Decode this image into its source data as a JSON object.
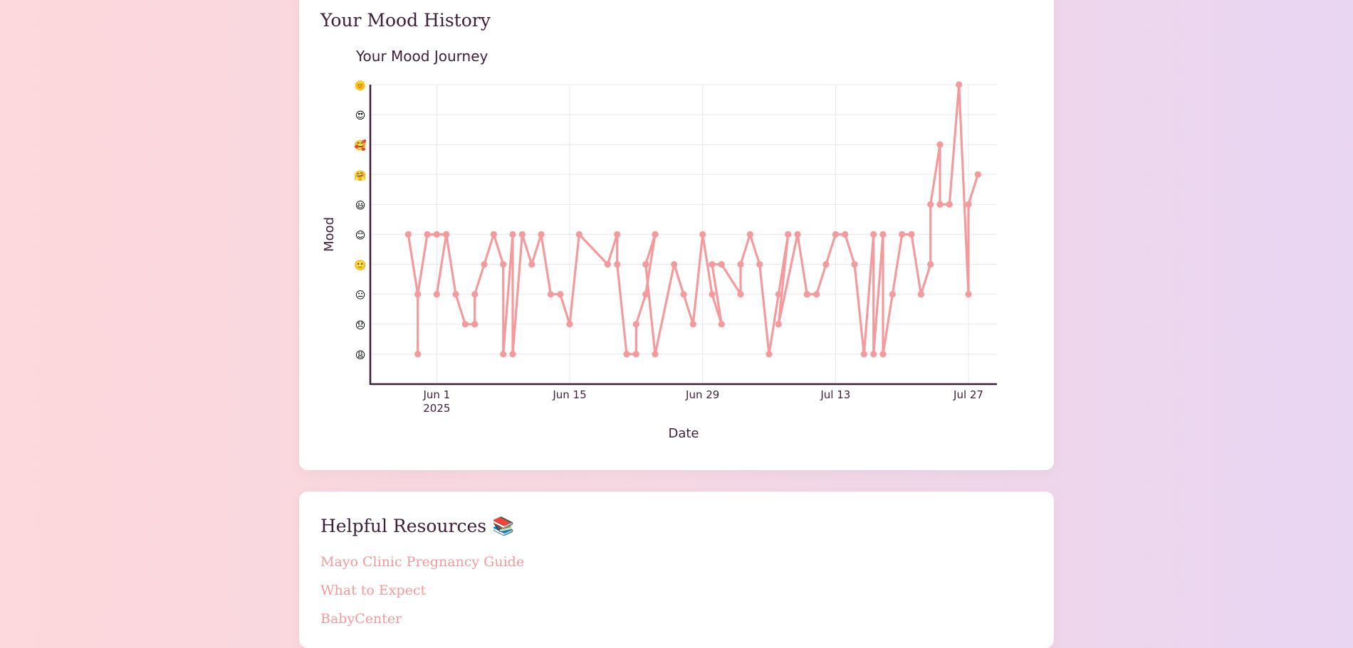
{
  "mood_card": {
    "title": "Your Mood History"
  },
  "resources": {
    "title": "Helpful Resources 📚",
    "links": [
      {
        "label": "Mayo Clinic Pregnancy Guide"
      },
      {
        "label": "What to Expect"
      },
      {
        "label": "BabyCenter"
      }
    ]
  },
  "chart_data": {
    "type": "line",
    "title": "Your Mood Journey",
    "xlabel": "Date",
    "ylabel": "Mood",
    "colors": {
      "line": "#f59a9c",
      "axis": "#3d1f3a",
      "grid": "#e8e8ec",
      "text": "#3d1f3a"
    },
    "mood_levels": [
      "😩",
      "😞",
      "😐",
      "🙂",
      "😊",
      "😃",
      "🤗",
      "🥰",
      "😍",
      "🌞"
    ],
    "ylim": [
      0,
      10
    ],
    "xlim": [
      "2025-05-25",
      "2025-07-30"
    ],
    "x_ticks": [
      "2025-06-01",
      "2025-06-15",
      "2025-06-29",
      "2025-07-13",
      "2025-07-27"
    ],
    "x_tick_labels": [
      [
        "Jun 1",
        "2025"
      ],
      [
        "Jun 15"
      ],
      [
        "Jun 29"
      ],
      [
        "Jul 13"
      ],
      [
        "Jul 27"
      ]
    ],
    "grid": true,
    "series": [
      {
        "x": [
          "2025-05-29",
          "2025-05-30",
          "2025-05-30",
          "2025-05-30",
          "2025-05-31",
          "2025-06-01",
          "2025-06-02",
          "2025-06-01",
          "2025-06-02",
          "2025-06-03",
          "2025-06-04",
          "2025-06-05",
          "2025-06-05",
          "2025-06-05",
          "2025-06-06",
          "2025-06-07",
          "2025-06-08",
          "2025-06-08",
          "2025-06-09",
          "2025-06-09",
          "2025-06-10",
          "2025-06-11",
          "2025-06-12",
          "2025-06-13",
          "2025-06-14",
          "2025-06-15",
          "2025-06-16",
          "2025-06-19",
          "2025-06-20",
          "2025-06-20",
          "2025-06-21",
          "2025-06-22",
          "2025-06-22",
          "2025-06-23",
          "2025-06-24",
          "2025-06-23",
          "2025-06-24",
          "2025-06-26",
          "2025-06-27",
          "2025-06-28",
          "2025-06-29",
          "2025-06-30",
          "2025-07-01",
          "2025-06-30",
          "2025-07-01",
          "2025-07-03",
          "2025-07-03",
          "2025-07-04",
          "2025-07-05",
          "2025-07-06",
          "2025-07-07",
          "2025-07-08",
          "2025-07-07",
          "2025-07-09",
          "2025-07-10",
          "2025-07-10",
          "2025-07-11",
          "2025-07-12",
          "2025-07-13",
          "2025-07-14",
          "2025-07-15",
          "2025-07-16",
          "2025-07-17",
          "2025-07-17",
          "2025-07-18",
          "2025-07-18",
          "2025-07-19",
          "2025-07-19",
          "2025-07-20",
          "2025-07-21",
          "2025-07-22",
          "2025-07-22",
          "2025-07-23",
          "2025-07-23",
          "2025-07-24",
          "2025-07-24",
          "2025-07-24",
          "2025-07-25",
          "2025-07-26",
          "2025-07-27",
          "2025-07-27",
          "2025-07-28",
          "2025-07-28"
        ],
        "y": [
          5,
          3,
          1,
          3,
          5,
          5,
          5,
          3,
          5,
          3,
          2,
          2,
          2,
          3,
          4,
          5,
          4,
          1,
          5,
          1,
          5,
          4,
          5,
          3,
          3,
          2,
          5,
          4,
          5,
          4,
          1,
          1,
          2,
          3,
          5,
          4,
          1,
          4,
          3,
          2,
          5,
          3,
          2,
          4,
          4,
          3,
          4,
          5,
          4,
          1,
          3,
          5,
          2,
          5,
          3,
          3,
          3,
          4,
          5,
          5,
          4,
          1,
          5,
          1,
          5,
          1,
          3,
          3,
          5,
          5,
          3,
          3,
          4,
          6,
          8,
          6,
          6,
          6,
          10,
          3,
          6,
          7,
          7
        ]
      }
    ]
  }
}
